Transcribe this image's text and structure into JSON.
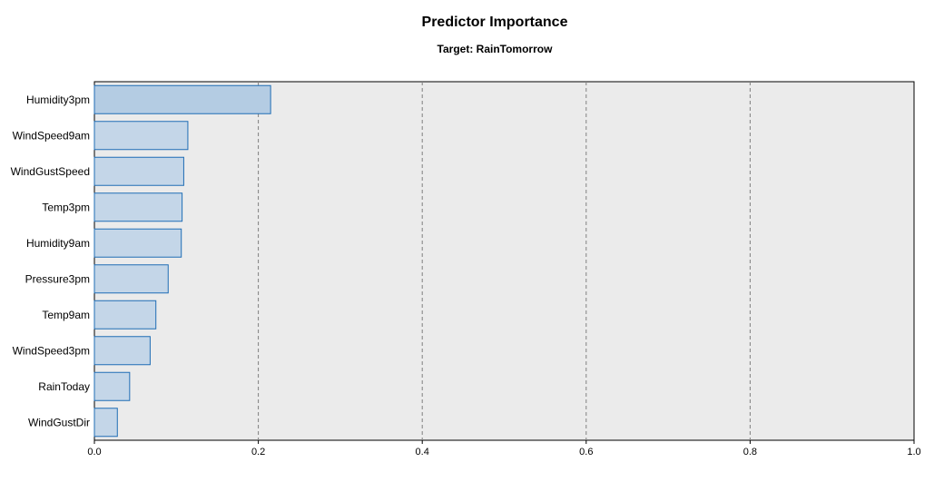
{
  "chart_data": {
    "type": "bar",
    "orientation": "horizontal",
    "title": "Predictor Importance",
    "subtitle": "Target: RainTomorrow",
    "categories": [
      "Humidity3pm",
      "WindSpeed9am",
      "WindGustSpeed",
      "Temp3pm",
      "Humidity9am",
      "Pressure3pm",
      "Temp9am",
      "WindSpeed3pm",
      "RainToday",
      "WindGustDir"
    ],
    "values": [
      0.215,
      0.114,
      0.109,
      0.107,
      0.106,
      0.09,
      0.075,
      0.068,
      0.043,
      0.028
    ],
    "xlim": [
      0,
      1
    ],
    "xticks": [
      "0.0",
      "0.2",
      "0.4",
      "0.6",
      "0.8",
      "1.0"
    ],
    "grid": true,
    "colors": {
      "bar_fill_highlight": "#b4cce3",
      "bar_fill": "#c4d6e8",
      "bar_stroke": "#1f6db5",
      "plot_background": "#ebebeb"
    }
  }
}
